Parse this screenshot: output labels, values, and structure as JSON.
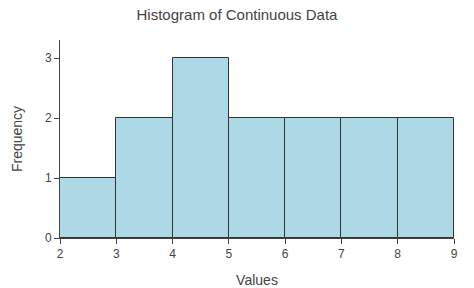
{
  "chart_data": {
    "type": "histogram",
    "title": "Histogram of Continuous Data",
    "xlabel": "Values",
    "ylabel": "Frequency",
    "bins": [
      2,
      3,
      4,
      5,
      6,
      7,
      8,
      9
    ],
    "values": [
      1,
      2,
      3,
      2,
      2,
      2,
      2
    ],
    "color": "#add8e6",
    "xlim": [
      2,
      9
    ],
    "ylim": [
      0,
      3.3
    ],
    "xticks": [
      2,
      3,
      4,
      5,
      6,
      7,
      8,
      9
    ],
    "yticks": [
      0,
      1,
      2,
      3
    ],
    "grid": false
  }
}
